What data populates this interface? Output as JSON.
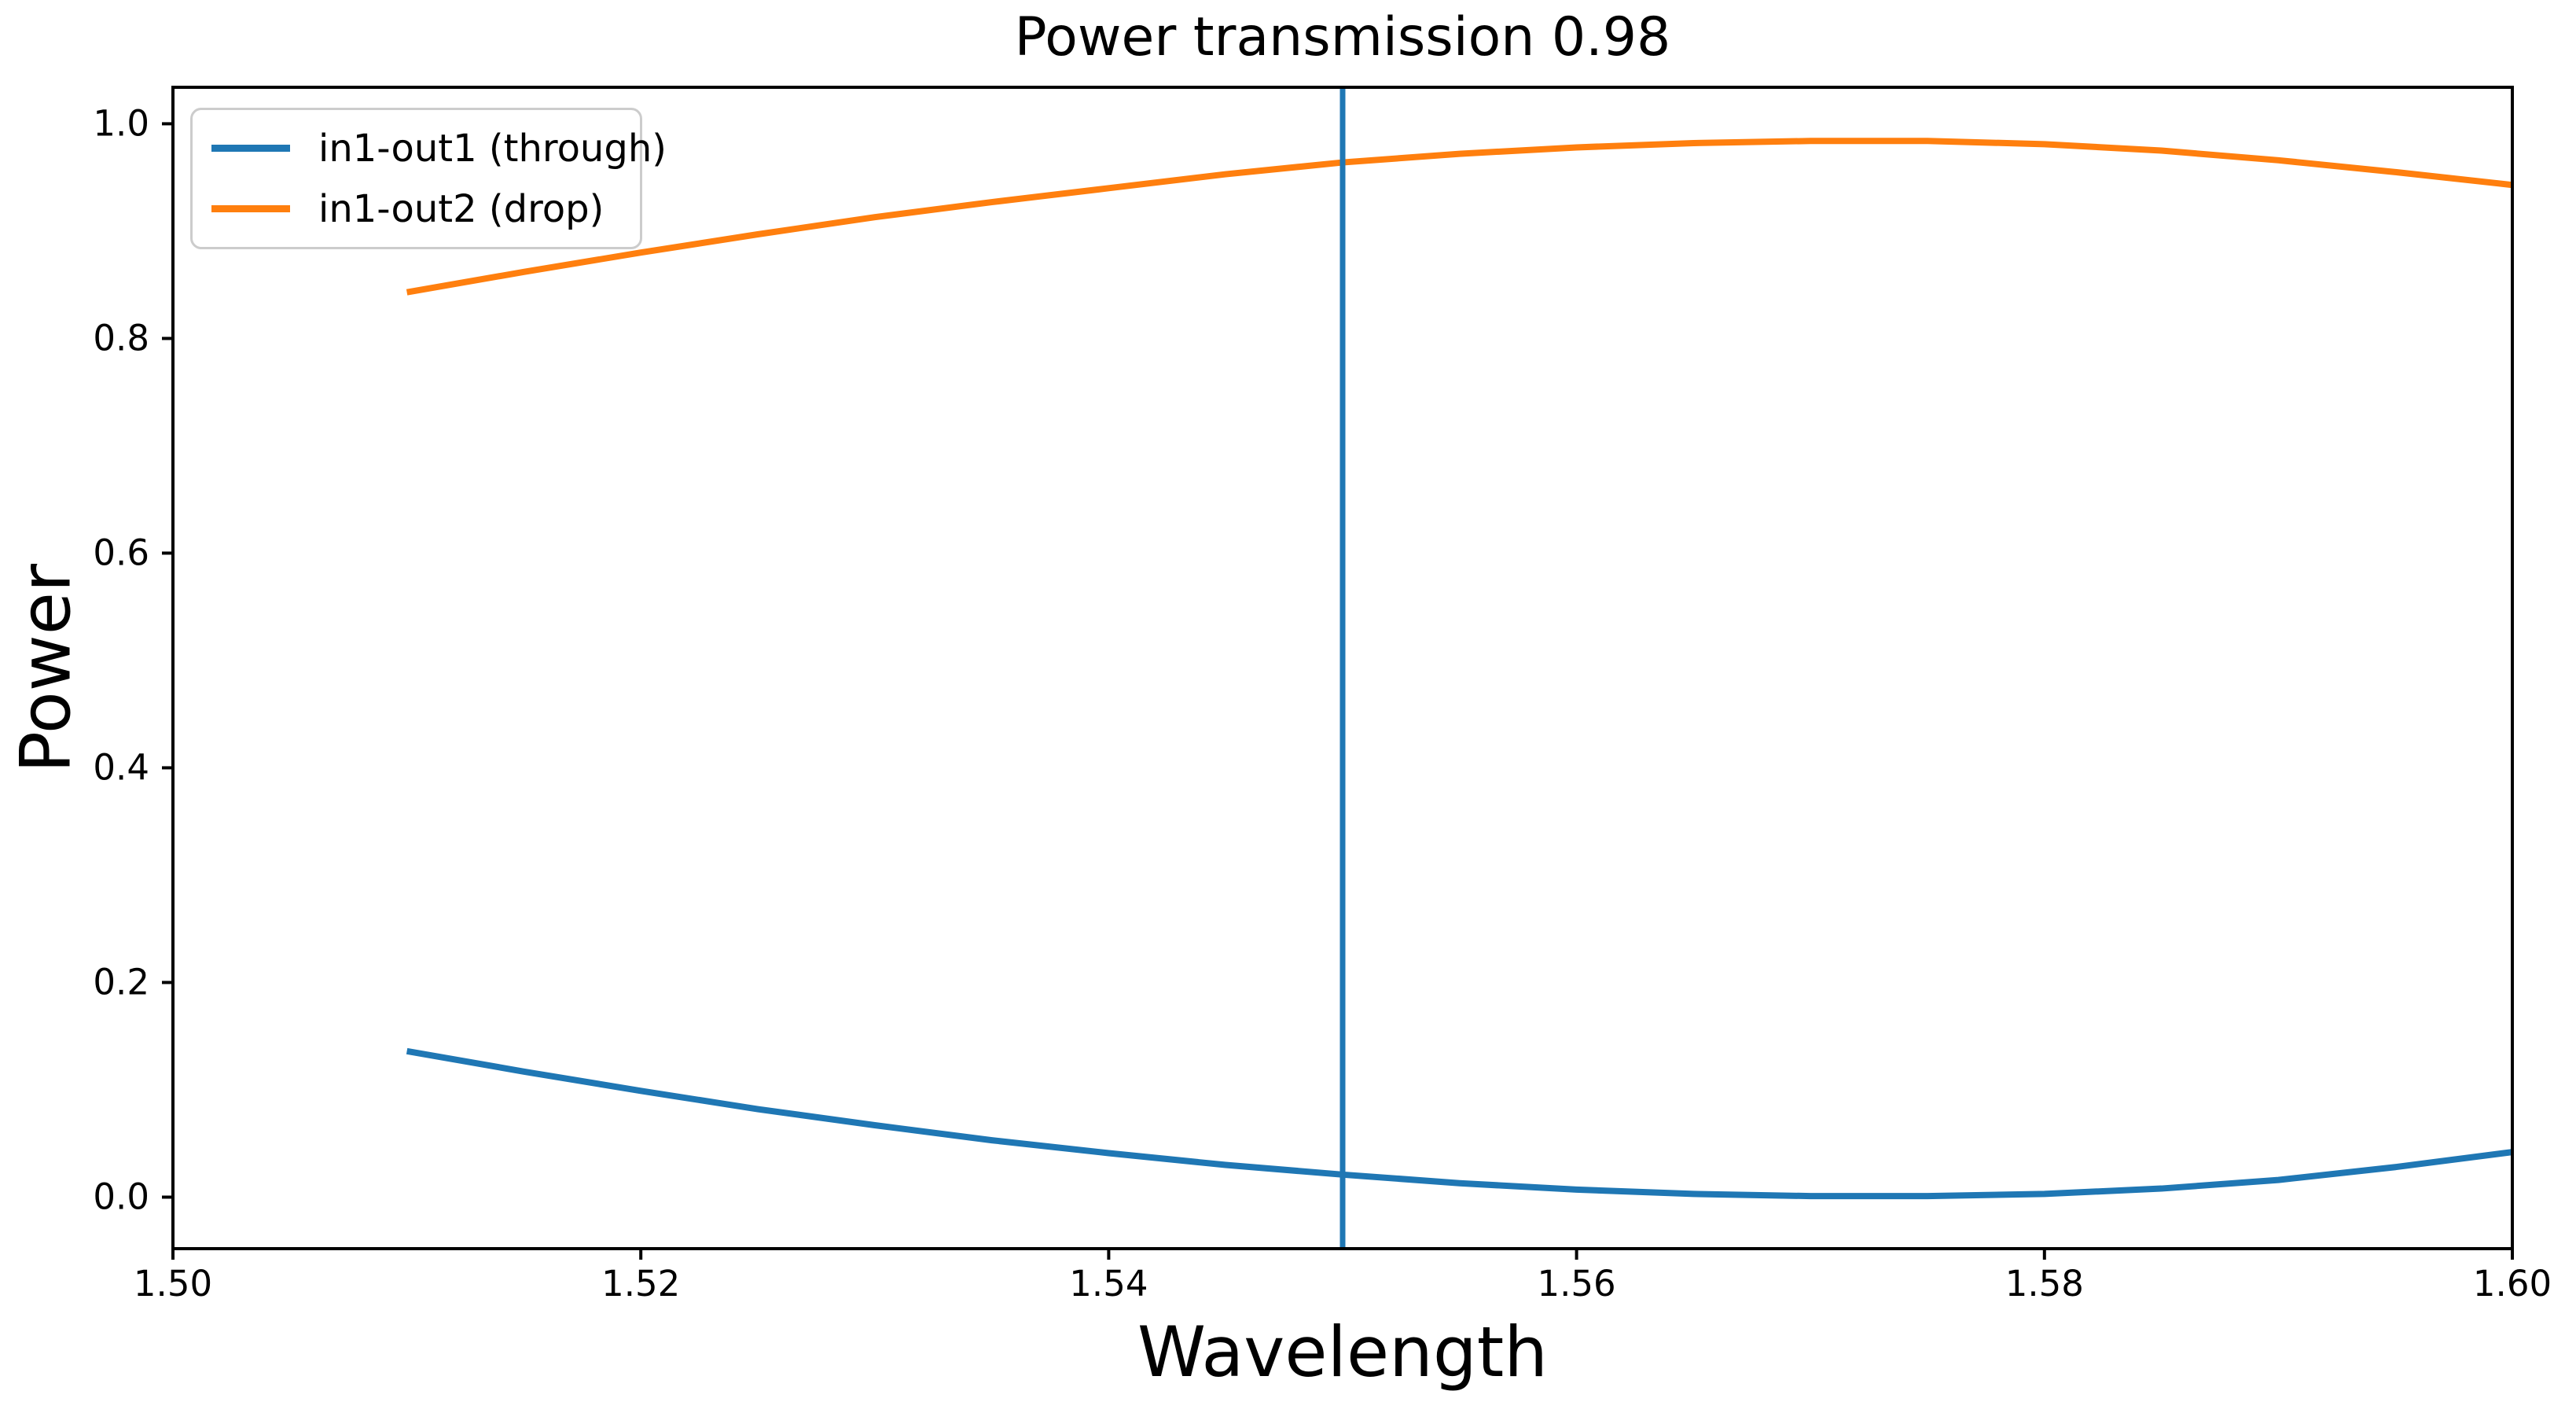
{
  "chart_data": {
    "type": "line",
    "title": "Power transmission 0.98",
    "xlabel": "Wavelength",
    "ylabel": "Power",
    "xlim": [
      1.5,
      1.6
    ],
    "ylim": [
      -0.048,
      1.034
    ],
    "grid": false,
    "legend_position": "upper left",
    "xticks": [
      {
        "value": 1.5,
        "label": "1.50"
      },
      {
        "value": 1.52,
        "label": "1.52"
      },
      {
        "value": 1.54,
        "label": "1.54"
      },
      {
        "value": 1.56,
        "label": "1.56"
      },
      {
        "value": 1.58,
        "label": "1.58"
      },
      {
        "value": 1.6,
        "label": "1.60"
      }
    ],
    "yticks": [
      {
        "value": 0.0,
        "label": "0.0"
      },
      {
        "value": 0.2,
        "label": "0.2"
      },
      {
        "value": 0.4,
        "label": "0.4"
      },
      {
        "value": 0.6,
        "label": "0.6"
      },
      {
        "value": 0.8,
        "label": "0.8"
      },
      {
        "value": 1.0,
        "label": "1.0"
      }
    ],
    "x": [
      1.51,
      1.515,
      1.52,
      1.525,
      1.53,
      1.535,
      1.54,
      1.545,
      1.55,
      1.555,
      1.56,
      1.565,
      1.57,
      1.575,
      1.58,
      1.585,
      1.59,
      1.595,
      1.6
    ],
    "series": [
      {
        "name": "in1-out1 (through)",
        "color": "#1f77b4",
        "values": [
          0.136,
          0.117,
          0.099,
          0.082,
          0.067,
          0.053,
          0.041,
          0.03,
          0.021,
          0.013,
          0.007,
          0.003,
          0.001,
          0.001,
          0.003,
          0.008,
          0.016,
          0.028,
          0.042
        ]
      },
      {
        "name": "in1-out2 (drop)",
        "color": "#ff7f0e",
        "values": [
          0.843,
          0.862,
          0.88,
          0.897,
          0.913,
          0.927,
          0.94,
          0.953,
          0.964,
          0.972,
          0.978,
          0.982,
          0.984,
          0.984,
          0.981,
          0.975,
          0.966,
          0.955,
          0.943
        ]
      }
    ],
    "vline": {
      "x": 1.55,
      "color": "#1f77b4"
    },
    "axis_color": "#000000",
    "background_color": "#ffffff"
  }
}
